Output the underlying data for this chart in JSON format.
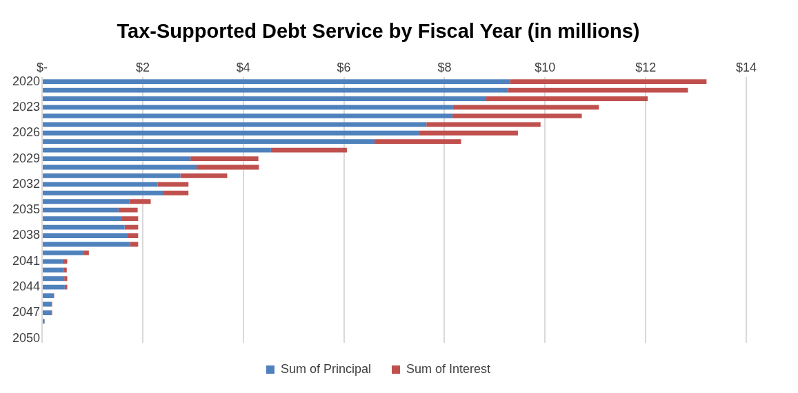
{
  "chart_data": {
    "type": "bar",
    "orientation": "horizontal",
    "stacked": true,
    "title": "Tax-Supported Debt Service by Fiscal Year (in millions)",
    "categories": [
      "2020",
      null,
      null,
      "2023",
      null,
      null,
      "2026",
      null,
      null,
      "2029",
      null,
      null,
      "2032",
      null,
      null,
      "2035",
      null,
      null,
      "2038",
      null,
      null,
      "2041",
      null,
      null,
      "2044",
      null,
      null,
      "2047",
      null,
      null,
      "2050"
    ],
    "series": [
      {
        "name": "Sum of Principal",
        "color": "#4f81bd",
        "values": [
          9.3,
          9.26,
          8.83,
          8.17,
          8.16,
          7.64,
          7.49,
          6.61,
          4.55,
          2.95,
          3.07,
          2.75,
          2.3,
          2.4,
          1.73,
          1.52,
          1.59,
          1.64,
          1.7,
          1.75,
          0.82,
          0.41,
          0.42,
          0.44,
          0.45,
          0.22,
          0.19,
          0.19,
          0.05,
          null,
          null
        ]
      },
      {
        "name": "Sum of Interest",
        "color": "#c0504d",
        "values": [
          3.91,
          3.58,
          3.21,
          2.9,
          2.57,
          2.27,
          1.97,
          1.72,
          1.51,
          1.35,
          1.24,
          0.93,
          0.61,
          0.51,
          0.43,
          0.38,
          0.32,
          0.27,
          0.21,
          0.16,
          0.11,
          0.09,
          0.07,
          0.06,
          0.05,
          0.02,
          0.01,
          0.01,
          0,
          null,
          null
        ]
      }
    ],
    "xlim": [
      0,
      14
    ],
    "xticks": [
      {
        "value": 0,
        "label": "$-"
      },
      {
        "value": 2,
        "label": "$2"
      },
      {
        "value": 4,
        "label": "$4"
      },
      {
        "value": 6,
        "label": "$6"
      },
      {
        "value": 8,
        "label": "$8"
      },
      {
        "value": 10,
        "label": "$10"
      },
      {
        "value": 12,
        "label": "$12"
      },
      {
        "value": 14,
        "label": "$14"
      }
    ],
    "grid": "x",
    "legend": "bottom"
  }
}
